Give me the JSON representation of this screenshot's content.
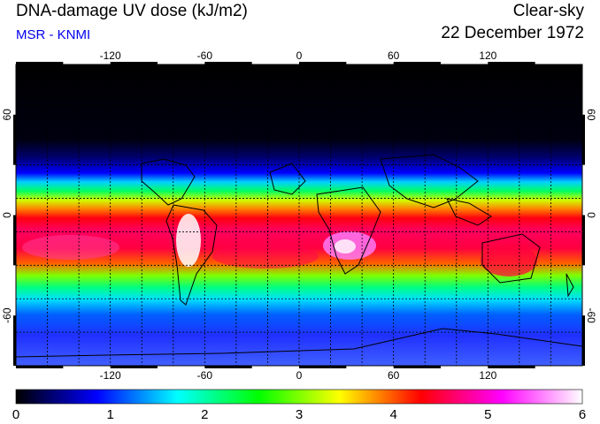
{
  "header": {
    "title": "DNA-damage UV dose (kJ/m2)",
    "source": "MSR - KNMI",
    "sky_condition": "Clear-sky",
    "date": "22 December 1972"
  },
  "map": {
    "projection": "equirectangular",
    "longitude_range": [
      -180,
      180
    ],
    "latitude_range": [
      -90,
      90
    ],
    "longitude_ticks": [
      -120,
      -60,
      0,
      60,
      120
    ],
    "latitude_ticks": [
      60,
      0,
      -60
    ],
    "longitude_tick_labels": [
      "-120",
      "-60",
      "0",
      "60",
      "120"
    ],
    "latitude_tick_labels": [
      "60",
      "0",
      "-60"
    ],
    "grid_spacing_degrees": 20
  },
  "colorbar": {
    "min": 0,
    "max": 6,
    "tick_labels": [
      "0",
      "1",
      "2",
      "3",
      "4",
      "5",
      "6"
    ],
    "colors": [
      "#000000",
      "#0000ff",
      "#00ffff",
      "#00ff00",
      "#ffff00",
      "#ff0000",
      "#ff00ff",
      "#ffffff"
    ]
  },
  "colors": {
    "title": "#000000",
    "source": "#0000ee"
  }
}
